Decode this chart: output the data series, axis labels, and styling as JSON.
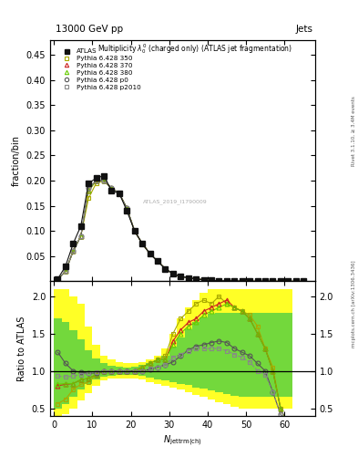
{
  "title_top": "13000 GeV pp",
  "title_top_right": "Jets",
  "plot_title": "Multiplicity $\\lambda_0^0$ (charged only) (ATLAS jet fragmentation)",
  "ylabel_main": "fraction/bin",
  "ylabel_ratio": "Ratio to ATLAS",
  "xlabel": "$N_{\\mathrm{jettrm(ch)}}$",
  "right_label": "Rivet 3.1.10, ≥ 3.4M events",
  "right_label2": "mcplots.cern.ch [arXiv:1306.3436]",
  "watermark": "ATLAS_2019_I1790009",
  "x": [
    1,
    3,
    5,
    7,
    9,
    11,
    13,
    15,
    17,
    19,
    21,
    23,
    25,
    27,
    29,
    31,
    33,
    35,
    37,
    39,
    41,
    43,
    45,
    47,
    49,
    51,
    53,
    55,
    57,
    59,
    61,
    63,
    65
  ],
  "atlas_y": [
    0.005,
    0.03,
    0.075,
    0.11,
    0.195,
    0.205,
    0.21,
    0.18,
    0.175,
    0.14,
    0.1,
    0.075,
    0.055,
    0.04,
    0.025,
    0.015,
    0.01,
    0.007,
    0.005,
    0.003,
    0.002,
    0.001,
    0.001,
    0.0005,
    0.0003,
    0.0002,
    0.0001,
    0.0001,
    0.0001,
    0.0,
    0.0,
    0.0,
    0.0
  ],
  "p350_y": [
    0.004,
    0.02,
    0.06,
    0.09,
    0.165,
    0.195,
    0.2,
    0.185,
    0.175,
    0.145,
    0.1,
    0.075,
    0.055,
    0.04,
    0.025,
    0.015,
    0.01,
    0.007,
    0.005,
    0.003,
    0.002,
    0.001,
    0.001,
    0.0005,
    0.0003,
    0.0002,
    0.0001,
    0.0001,
    0.0001,
    0.0,
    0.0,
    0.0,
    0.0
  ],
  "p370_y": [
    0.004,
    0.02,
    0.06,
    0.09,
    0.18,
    0.2,
    0.2,
    0.185,
    0.175,
    0.145,
    0.1,
    0.075,
    0.055,
    0.04,
    0.025,
    0.015,
    0.01,
    0.007,
    0.005,
    0.003,
    0.002,
    0.001,
    0.001,
    0.0005,
    0.0003,
    0.0002,
    0.0001,
    0.0001,
    0.0001,
    0.0,
    0.0,
    0.0,
    0.0
  ],
  "p380_y": [
    0.004,
    0.02,
    0.06,
    0.09,
    0.18,
    0.2,
    0.2,
    0.185,
    0.175,
    0.145,
    0.1,
    0.075,
    0.055,
    0.04,
    0.025,
    0.015,
    0.01,
    0.007,
    0.005,
    0.003,
    0.002,
    0.001,
    0.001,
    0.0005,
    0.0003,
    0.0002,
    0.0001,
    0.0001,
    0.0001,
    0.0,
    0.0,
    0.0,
    0.0
  ],
  "p0_y": [
    0.004,
    0.02,
    0.06,
    0.09,
    0.185,
    0.2,
    0.2,
    0.185,
    0.175,
    0.145,
    0.1,
    0.075,
    0.055,
    0.04,
    0.025,
    0.015,
    0.01,
    0.007,
    0.005,
    0.003,
    0.002,
    0.001,
    0.001,
    0.0005,
    0.0003,
    0.0002,
    0.0001,
    0.0001,
    0.0001,
    0.0,
    0.0,
    0.0,
    0.0
  ],
  "p2010_y": [
    0.004,
    0.02,
    0.06,
    0.09,
    0.185,
    0.2,
    0.2,
    0.185,
    0.175,
    0.145,
    0.1,
    0.075,
    0.055,
    0.04,
    0.025,
    0.015,
    0.01,
    0.007,
    0.005,
    0.003,
    0.002,
    0.001,
    0.001,
    0.0005,
    0.0003,
    0.0002,
    0.0001,
    0.0001,
    0.0001,
    0.0,
    0.0,
    0.0,
    0.0
  ],
  "x_ratio": [
    1,
    3,
    5,
    7,
    9,
    11,
    13,
    15,
    17,
    19,
    21,
    23,
    25,
    27,
    29,
    31,
    33,
    35,
    37,
    39,
    41,
    43,
    45,
    47,
    49,
    51,
    53,
    55,
    57,
    59,
    61
  ],
  "p350_ratio": [
    0.56,
    0.62,
    0.75,
    0.82,
    0.85,
    0.95,
    1.0,
    1.0,
    1.0,
    1.0,
    1.0,
    1.05,
    1.1,
    1.15,
    1.2,
    1.5,
    1.7,
    1.8,
    1.9,
    1.95,
    1.9,
    2.0,
    1.9,
    1.85,
    1.8,
    1.75,
    1.6,
    1.3,
    1.05,
    0.5,
    0.25
  ],
  "p370_ratio": [
    0.8,
    0.82,
    0.83,
    0.88,
    0.9,
    0.95,
    1.0,
    1.0,
    1.0,
    1.0,
    1.0,
    1.05,
    1.1,
    1.15,
    1.15,
    1.4,
    1.55,
    1.65,
    1.7,
    1.8,
    1.85,
    1.9,
    1.95,
    1.85,
    1.8,
    1.7,
    1.5,
    1.3,
    1.0,
    0.5,
    0.25
  ],
  "p380_ratio": [
    0.82,
    0.83,
    0.83,
    0.88,
    0.9,
    0.95,
    1.0,
    1.0,
    1.0,
    1.0,
    1.0,
    1.05,
    1.1,
    1.15,
    1.15,
    1.35,
    1.5,
    1.6,
    1.65,
    1.75,
    1.8,
    1.85,
    1.9,
    1.85,
    1.8,
    1.7,
    1.5,
    1.3,
    1.0,
    0.5,
    0.25
  ],
  "p0_ratio": [
    1.25,
    1.1,
    1.0,
    0.98,
    0.97,
    0.97,
    1.0,
    1.0,
    1.0,
    1.0,
    1.0,
    1.0,
    1.02,
    1.05,
    1.08,
    1.12,
    1.2,
    1.28,
    1.33,
    1.35,
    1.38,
    1.4,
    1.38,
    1.3,
    1.25,
    1.2,
    1.1,
    1.0,
    0.72,
    0.42,
    0.3
  ],
  "p2010_ratio": [
    0.93,
    0.92,
    0.93,
    0.95,
    0.97,
    0.98,
    1.0,
    1.0,
    1.0,
    1.0,
    1.0,
    1.0,
    1.03,
    1.05,
    1.08,
    1.18,
    1.22,
    1.27,
    1.3,
    1.3,
    1.3,
    1.3,
    1.27,
    1.22,
    1.18,
    1.12,
    1.0,
    0.95,
    0.72,
    0.42,
    0.3
  ],
  "yellow_band_x": [
    0,
    2,
    4,
    6,
    8,
    10,
    12,
    14,
    16,
    18,
    20,
    22,
    24,
    26,
    28,
    30,
    32,
    34,
    36,
    38,
    40,
    42,
    44,
    46,
    48,
    50,
    52,
    54,
    56,
    58,
    60,
    62
  ],
  "yellow_band_lo": [
    0.4,
    0.42,
    0.5,
    0.6,
    0.7,
    0.8,
    0.87,
    0.9,
    0.9,
    0.9,
    0.9,
    0.88,
    0.85,
    0.82,
    0.8,
    0.78,
    0.75,
    0.72,
    0.68,
    0.65,
    0.62,
    0.58,
    0.55,
    0.52,
    0.5,
    0.5,
    0.5,
    0.5,
    0.5,
    0.5,
    0.5,
    0.5
  ],
  "yellow_band_hi": [
    2.1,
    2.1,
    2.0,
    1.9,
    1.6,
    1.35,
    1.2,
    1.15,
    1.12,
    1.1,
    1.1,
    1.12,
    1.15,
    1.2,
    1.3,
    1.5,
    1.7,
    1.85,
    1.95,
    2.05,
    2.1,
    2.1,
    2.1,
    2.1,
    2.1,
    2.1,
    2.1,
    2.1,
    2.1,
    2.1,
    2.1,
    2.1
  ],
  "green_band_lo": [
    0.5,
    0.55,
    0.65,
    0.75,
    0.82,
    0.88,
    0.92,
    0.94,
    0.95,
    0.95,
    0.95,
    0.93,
    0.91,
    0.89,
    0.87,
    0.85,
    0.83,
    0.81,
    0.78,
    0.76,
    0.74,
    0.71,
    0.69,
    0.67,
    0.65,
    0.65,
    0.65,
    0.65,
    0.65,
    0.65,
    0.65,
    0.65
  ],
  "green_band_hi": [
    1.7,
    1.65,
    1.55,
    1.42,
    1.28,
    1.17,
    1.1,
    1.07,
    1.06,
    1.05,
    1.06,
    1.08,
    1.1,
    1.14,
    1.2,
    1.32,
    1.45,
    1.56,
    1.65,
    1.72,
    1.77,
    1.78,
    1.78,
    1.78,
    1.78,
    1.78,
    1.78,
    1.78,
    1.78,
    1.78,
    1.78,
    1.78
  ],
  "color_350": "#aaaa00",
  "color_370": "#cc2222",
  "color_380": "#66cc00",
  "color_p0": "#555555",
  "color_p2010": "#888888",
  "color_atlas": "#111111",
  "ylim_main": [
    0,
    0.48
  ],
  "ylim_ratio": [
    0.4,
    2.2
  ],
  "xlim": [
    -1,
    68
  ],
  "yticks_main": [
    0.05,
    0.1,
    0.15,
    0.2,
    0.25,
    0.3,
    0.35,
    0.4,
    0.45
  ],
  "yticks_ratio": [
    0.5,
    1.0,
    1.5,
    2.0
  ],
  "xticks": [
    0,
    10,
    20,
    30,
    40,
    50,
    60
  ]
}
